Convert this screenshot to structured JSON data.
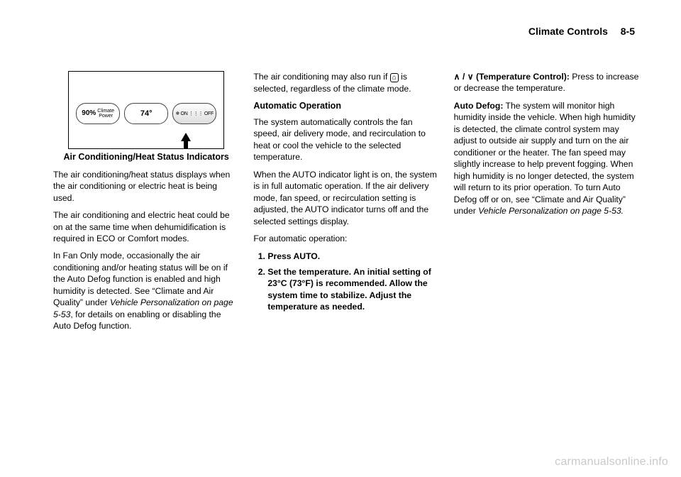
{
  "header": {
    "chapter": "Climate Controls",
    "pagenum": "8-5"
  },
  "col1": {
    "figure": {
      "pct_value": "90%",
      "pct_label": "Climate\nPower",
      "temp": "74°",
      "onoff": "❄ ON   ⋮⋮⋮ OFF"
    },
    "caption": "Air Conditioning/Heat Status Indicators",
    "p1": "The air conditioning/heat status displays when the air conditioning or electric heat is being used.",
    "p2": "The air conditioning and electric heat could be on at the same time when dehumidification is required in ECO or Comfort modes.",
    "p3a": "In Fan Only mode, occasionally the air conditioning and/or heating status will be on if the Auto Defog function is enabled and high humidity is detected. See “Climate and Air Quality” under ",
    "p3b": "Vehicle Personalization on page 5-53",
    "p3c": ", for details on enabling or disabling the Auto Defog function."
  },
  "col2": {
    "p1a": "The air conditioning may also run if ",
    "p1_icon": "⌂",
    "p1b": " is selected, regardless of the climate mode.",
    "sub1": "Automatic Operation",
    "p2": "The system automatically controls the fan speed, air delivery mode, and recirculation to heat or cool the vehicle to the selected temperature.",
    "p3": "When the AUTO indicator light is on, the system is in full automatic operation. If the air delivery mode, fan speed, or recirculation setting is adjusted, the AUTO indicator turns off and the selected settings display.",
    "p4": "For automatic operation:",
    "step1": "Press AUTO.",
    "step2": "Set the temperature. An initial setting of 23°C (73°F) is recommended. Allow the system time to stabilize. Adjust the temperature as needed."
  },
  "col3": {
    "tc_glyph": "∧ / ∨",
    "tc_label": " (Temperature Control):",
    "tc_body": " Press to increase or decrease the temperature.",
    "ad_label": "Auto Defog:",
    "ad_body": "  The system will monitor high humidity inside the vehicle. When high humidity is detected, the climate control system may adjust to outside air supply and turn on the air conditioner or the heater. The fan speed may slightly increase to help prevent fogging. When high humidity is no longer detected, the system will return to its prior operation. To turn Auto Defog off or on, see “Climate and Air Quality” under ",
    "ad_ref": "Vehicle Personalization on page 5-53.",
    "watermark": "carmanualsonline.info"
  }
}
